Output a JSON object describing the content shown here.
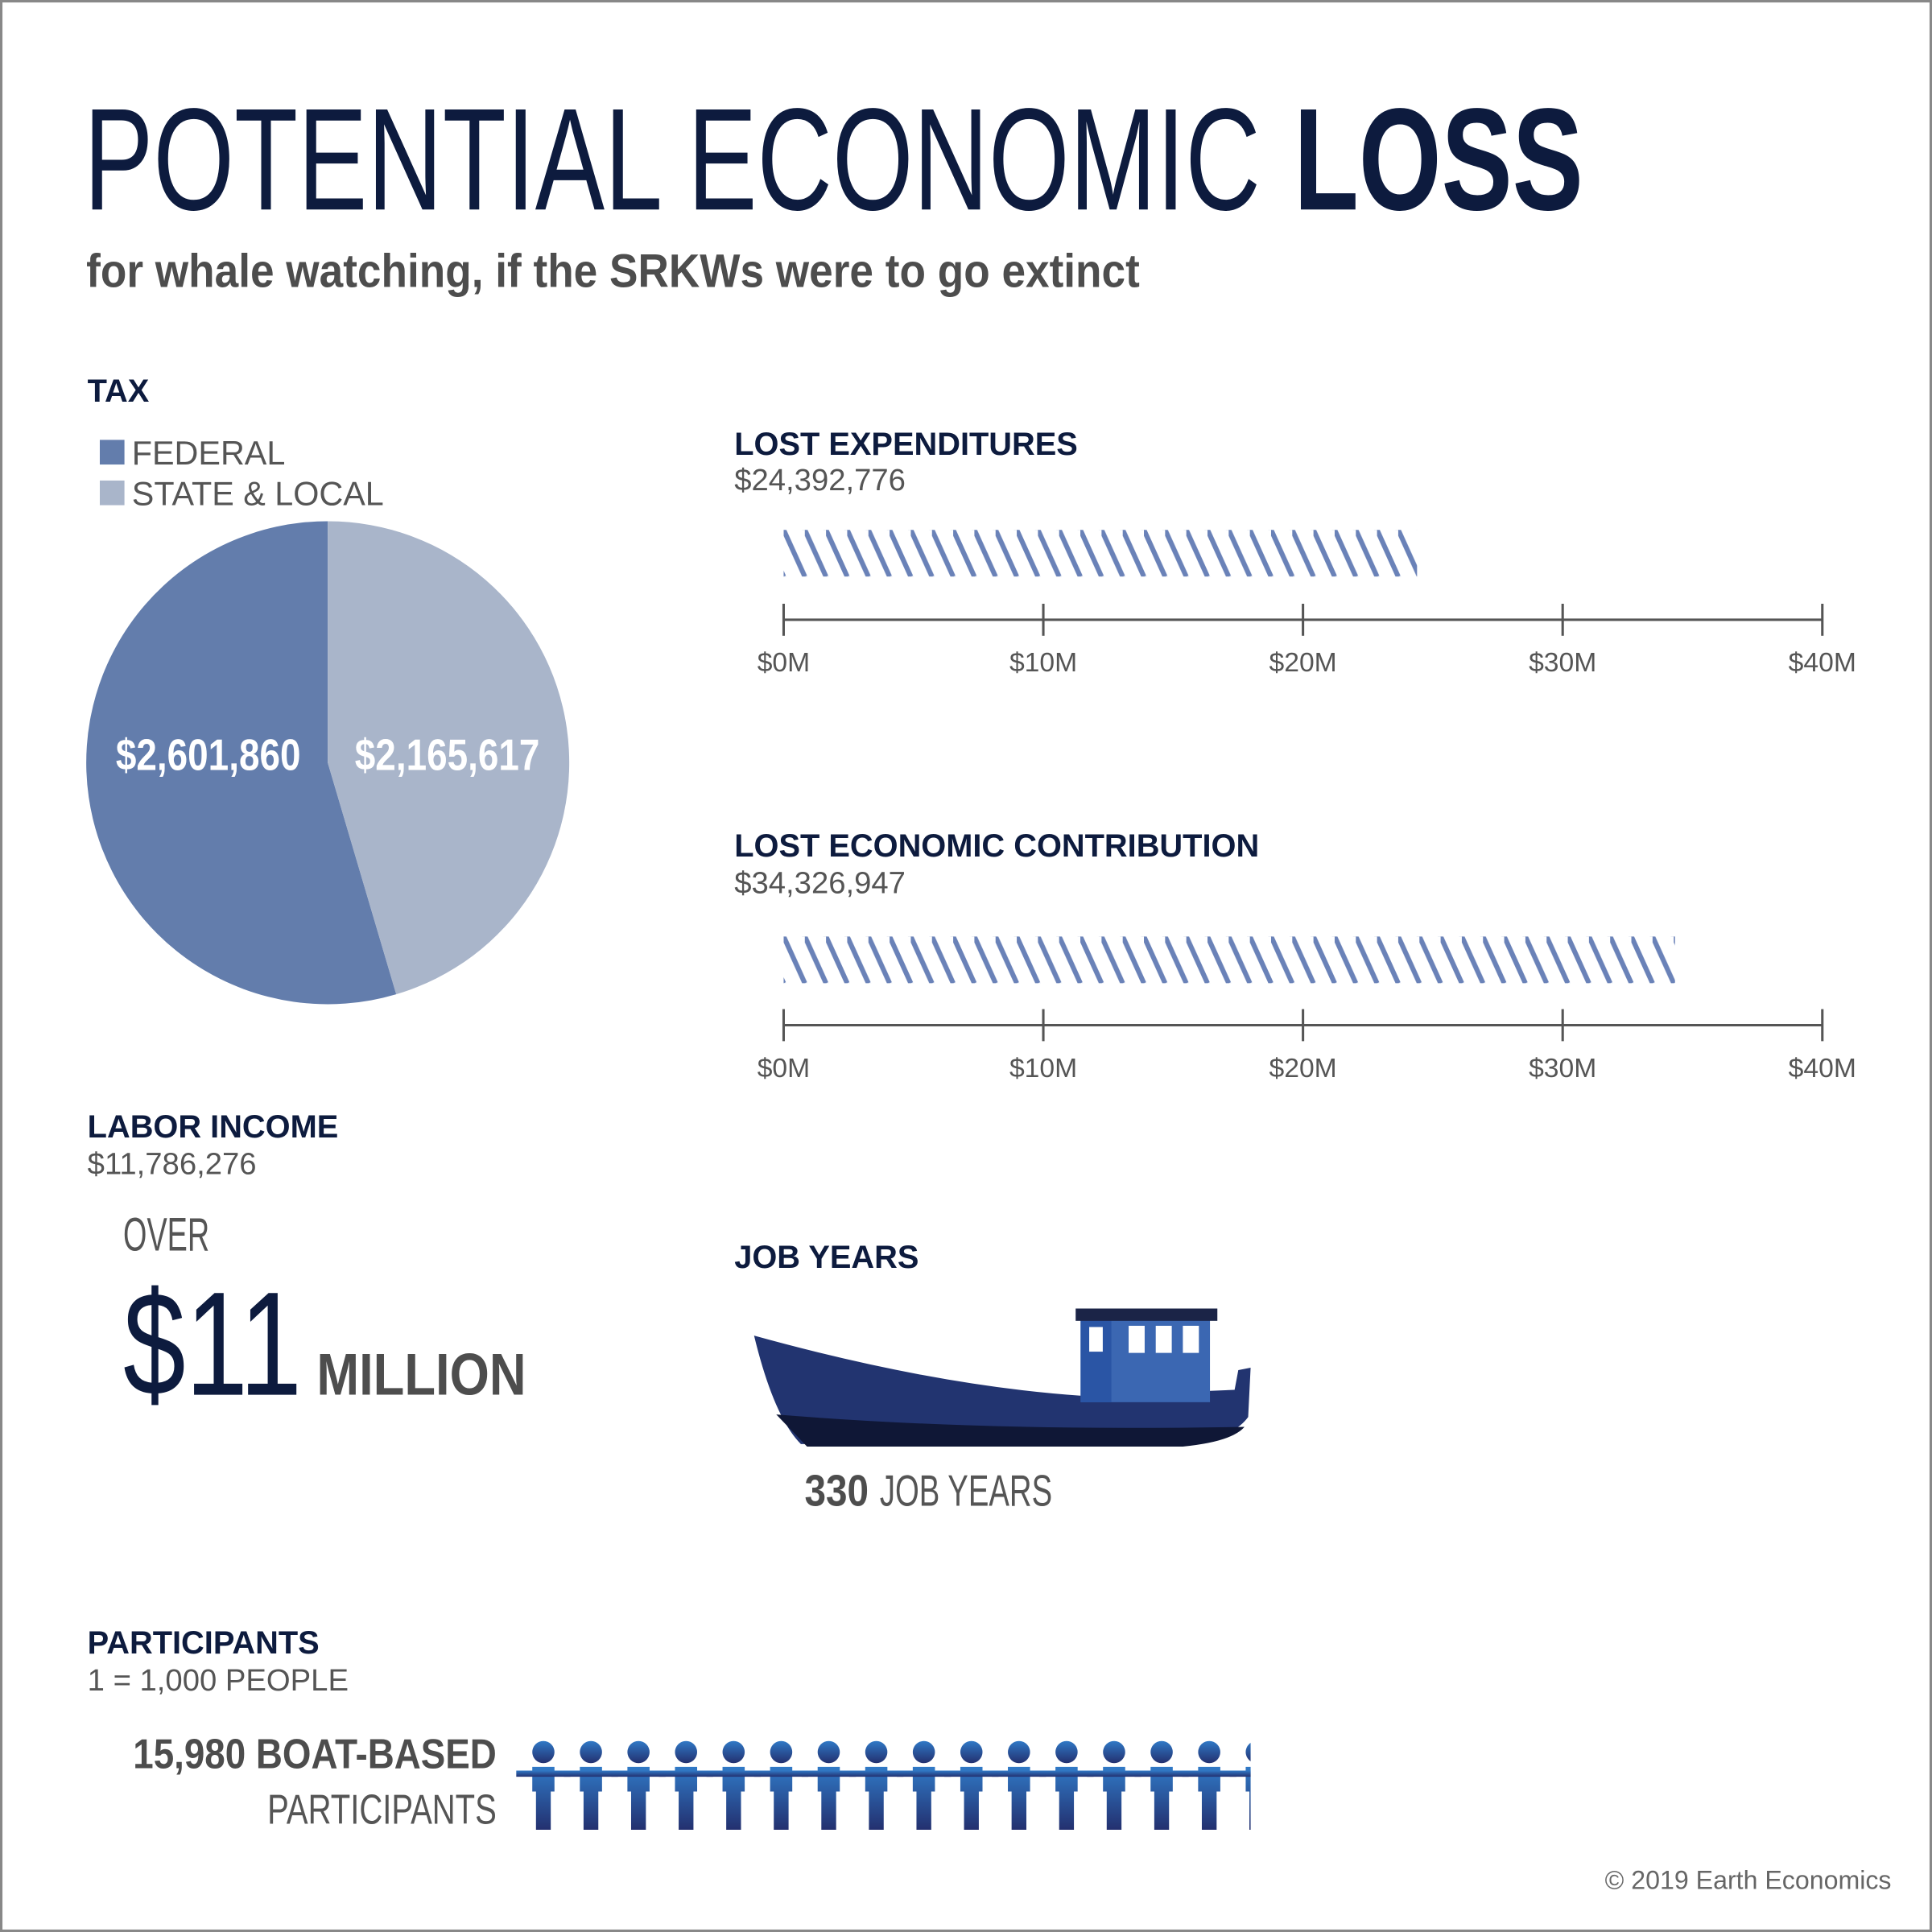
{
  "header": {
    "title_light": "POTENTIAL ECONOMIC",
    "title_bold": "LOSS",
    "subtitle": "for whale watching, if the SRKWs were to go extinct"
  },
  "chart_data": [
    {
      "type": "pie",
      "title": "TAX",
      "categories": [
        "FEDERAL",
        "STATE & LOCAL"
      ],
      "values": [
        2601860,
        2165617
      ],
      "value_labels": [
        "$2,601,860",
        "$2,165,617"
      ],
      "colors": [
        "#637dac",
        "#a9b5ca"
      ]
    },
    {
      "type": "bar",
      "title": "LOST EXPENDITURES",
      "values": [
        24392776
      ],
      "value_labels": [
        "$24,392,776"
      ],
      "color": "#6a82b8",
      "xlim": [
        0,
        40000000
      ],
      "xticks": [
        {
          "value": 0,
          "label": "$0M"
        },
        {
          "value": 10000000,
          "label": "$10M"
        },
        {
          "value": 20000000,
          "label": "$20M"
        },
        {
          "value": 30000000,
          "label": "$30M"
        },
        {
          "value": 40000000,
          "label": "$40M"
        }
      ]
    },
    {
      "type": "bar",
      "title": "LOST ECONOMIC CONTRIBUTION",
      "values": [
        34326947
      ],
      "value_labels": [
        "$34,326,947"
      ],
      "color": "#6a82b8",
      "xlim": [
        0,
        40000000
      ],
      "xticks": [
        {
          "value": 0,
          "label": "$0M"
        },
        {
          "value": 10000000,
          "label": "$10M"
        },
        {
          "value": 20000000,
          "label": "$20M"
        },
        {
          "value": 30000000,
          "label": "$30M"
        },
        {
          "value": 40000000,
          "label": "$40M"
        }
      ]
    }
  ],
  "labor": {
    "title": "LABOR INCOME",
    "value": "$11,786,276",
    "over": "OVER",
    "big": "$11",
    "unit": "MILLION"
  },
  "jobs": {
    "title": "JOB YEARS",
    "count": "330",
    "unit": "JOB YEARS"
  },
  "participants": {
    "title": "PARTICIPANTS",
    "scale": "1 = 1,000 PEOPLE",
    "count_line": "15,980 BOAT-BASED",
    "label": "PARTICIPANTS"
  },
  "footer": "© 2019 Earth Economics"
}
